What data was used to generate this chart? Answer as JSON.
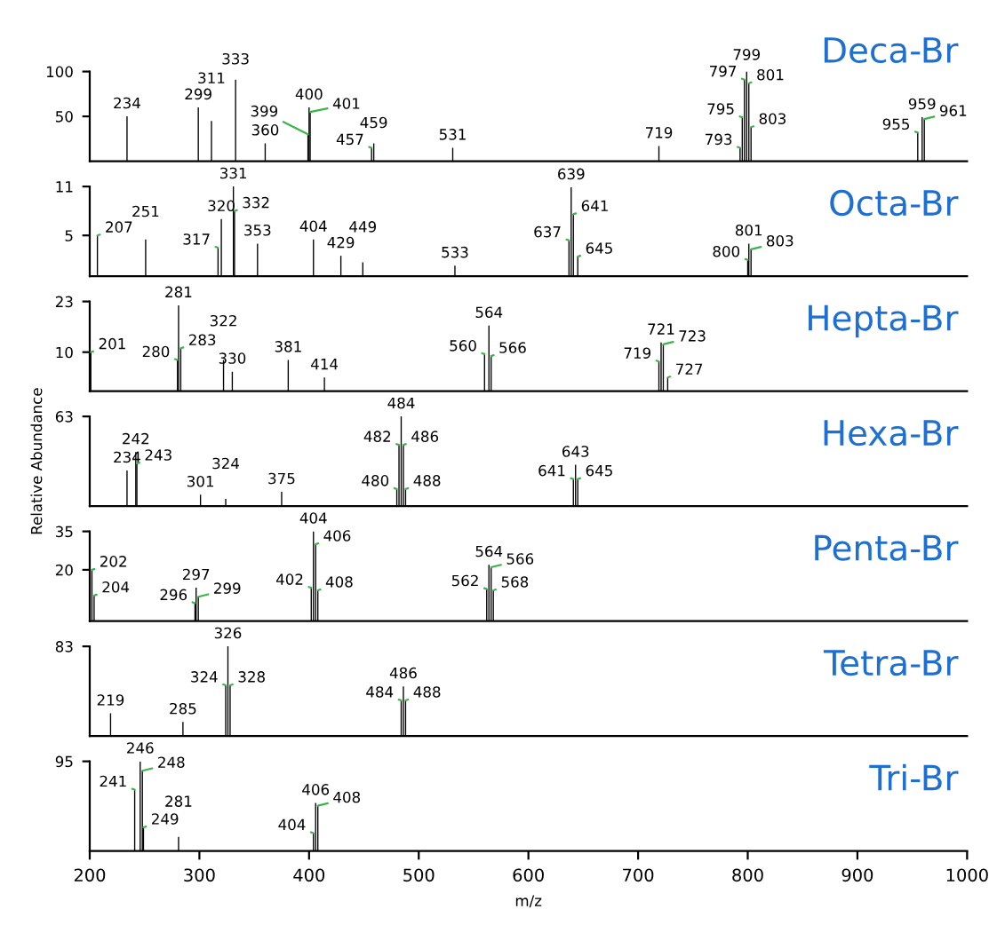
{
  "chart_data": [
    {
      "type": "bar",
      "title": "Deca-Br",
      "color": "#000000",
      "xlim": [
        200,
        1000
      ],
      "ylim": [
        0,
        100
      ],
      "yticks": [
        50,
        100
      ],
      "tick_labels": "y",
      "x": [
        234,
        299,
        311,
        333,
        360,
        399,
        400,
        401,
        457,
        459,
        531,
        719,
        793,
        795,
        797,
        799,
        801,
        803,
        955,
        959,
        961
      ],
      "values": [
        50,
        60,
        45,
        91,
        20,
        30,
        60,
        55,
        15,
        20,
        15,
        17,
        15,
        49,
        91,
        100,
        87,
        38,
        32,
        49,
        47
      ],
      "annotations": [
        {
          "text": "234",
          "x": 234,
          "y": 50
        },
        {
          "text": "299",
          "x": 299,
          "y": 60
        },
        {
          "text": "311",
          "x": 311,
          "y": 45
        },
        {
          "text": "333",
          "x": 333,
          "y": 91
        },
        {
          "text": "360",
          "x": 360,
          "y": 20
        },
        {
          "text": "399",
          "x": 399,
          "y": 30
        },
        {
          "text": "400",
          "x": 400,
          "y": 60
        },
        {
          "text": "401",
          "x": 401,
          "y": 55
        },
        {
          "text": "457",
          "x": 457,
          "y": 15
        },
        {
          "text": "459",
          "x": 459,
          "y": 20
        },
        {
          "text": "531",
          "x": 531,
          "y": 15
        },
        {
          "text": "719",
          "x": 719,
          "y": 17
        },
        {
          "text": "793",
          "x": 793,
          "y": 15
        },
        {
          "text": "795",
          "x": 795,
          "y": 49
        },
        {
          "text": "797",
          "x": 797,
          "y": 91
        },
        {
          "text": "799",
          "x": 799,
          "y": 100
        },
        {
          "text": "801",
          "x": 801,
          "y": 87
        },
        {
          "text": "803",
          "x": 803,
          "y": 38
        },
        {
          "text": "955",
          "x": 955,
          "y": 32
        },
        {
          "text": "959",
          "x": 959,
          "y": 49
        },
        {
          "text": "961",
          "x": 961,
          "y": 47
        }
      ]
    },
    {
      "type": "bar",
      "title": "Octa-Br",
      "color": "#000000",
      "xlim": [
        200,
        1000
      ],
      "ylim": [
        0,
        11
      ],
      "yticks": [
        5,
        11
      ],
      "tick_labels": "y",
      "x": [
        207,
        251,
        317,
        320,
        331,
        332,
        353,
        404,
        429,
        449,
        533,
        637,
        639,
        641,
        645,
        800,
        801,
        803
      ],
      "values": [
        5,
        4.5,
        3.5,
        7,
        11,
        8,
        4,
        4.5,
        2.5,
        1.7,
        1.3,
        4.4,
        10.9,
        7.6,
        2.4,
        2,
        4,
        3.3
      ],
      "annotations": [
        {
          "text": "207",
          "x": 207,
          "y": 5
        },
        {
          "text": "251",
          "x": 251,
          "y": 4.5
        },
        {
          "text": "317",
          "x": 317,
          "y": 3.5
        },
        {
          "text": "320",
          "x": 320,
          "y": 7
        },
        {
          "text": "331",
          "x": 331,
          "y": 11
        },
        {
          "text": "332",
          "x": 332,
          "y": 8
        },
        {
          "text": "353",
          "x": 353,
          "y": 4
        },
        {
          "text": "404",
          "x": 404,
          "y": 4.5
        },
        {
          "text": "429",
          "x": 429,
          "y": 2.5
        },
        {
          "text": "449",
          "x": 449,
          "y": 1.7
        },
        {
          "text": "533",
          "x": 533,
          "y": 1.3
        },
        {
          "text": "637",
          "x": 637,
          "y": 4.4
        },
        {
          "text": "639",
          "x": 639,
          "y": 10.9
        },
        {
          "text": "641",
          "x": 641,
          "y": 7.6
        },
        {
          "text": "645",
          "x": 645,
          "y": 2.4
        },
        {
          "text": "800",
          "x": 800,
          "y": 2
        },
        {
          "text": "801",
          "x": 801,
          "y": 4
        },
        {
          "text": "803",
          "x": 803,
          "y": 3.3
        }
      ]
    },
    {
      "type": "bar",
      "title": "Hepta-Br",
      "color": "#000000",
      "xlim": [
        200,
        1000
      ],
      "ylim": [
        0,
        23
      ],
      "yticks": [
        10,
        23
      ],
      "tick_labels": "y",
      "x": [
        201,
        280,
        281,
        283,
        322,
        330,
        381,
        414,
        560,
        564,
        566,
        719,
        721,
        723,
        727
      ],
      "values": [
        10,
        8,
        22,
        11,
        8,
        5,
        8,
        3.5,
        9.5,
        16.8,
        9,
        7.6,
        12.5,
        12,
        3.5
      ],
      "annotations": [
        {
          "text": "201",
          "x": 201,
          "y": 10
        },
        {
          "text": "280",
          "x": 280,
          "y": 8
        },
        {
          "text": "281",
          "x": 281,
          "y": 22
        },
        {
          "text": "283",
          "x": 283,
          "y": 11
        },
        {
          "text": "322",
          "x": 322,
          "y": 8
        },
        {
          "text": "330",
          "x": 330,
          "y": 5
        },
        {
          "text": "381",
          "x": 381,
          "y": 8
        },
        {
          "text": "414",
          "x": 414,
          "y": 3.5
        },
        {
          "text": "560",
          "x": 560,
          "y": 9.5
        },
        {
          "text": "564",
          "x": 564,
          "y": 16.8
        },
        {
          "text": "566",
          "x": 566,
          "y": 9
        },
        {
          "text": "719",
          "x": 719,
          "y": 7.6
        },
        {
          "text": "721",
          "x": 721,
          "y": 12.5
        },
        {
          "text": "723",
          "x": 723,
          "y": 12
        },
        {
          "text": "727",
          "x": 727,
          "y": 3.5
        }
      ]
    },
    {
      "type": "bar",
      "title": "Hexa-Br",
      "ylabel": "Relative Abundance",
      "color": "#000000",
      "xlim": [
        200,
        1000
      ],
      "ylim": [
        0,
        63
      ],
      "yticks": [
        63
      ],
      "tick_labels": "y",
      "x": [
        234,
        242,
        243,
        301,
        324,
        375,
        480,
        482,
        484,
        486,
        488,
        641,
        643,
        645
      ],
      "values": [
        25,
        38,
        30,
        8,
        5,
        10,
        12,
        43,
        63,
        43,
        12,
        19,
        29,
        19
      ],
      "annotations": [
        {
          "text": "234",
          "x": 234,
          "y": 25
        },
        {
          "text": "242",
          "x": 242,
          "y": 38
        },
        {
          "text": "243",
          "x": 243,
          "y": 30
        },
        {
          "text": "301",
          "x": 301,
          "y": 8
        },
        {
          "text": "324",
          "x": 324,
          "y": 5
        },
        {
          "text": "375",
          "x": 375,
          "y": 10
        },
        {
          "text": "480",
          "x": 480,
          "y": 12
        },
        {
          "text": "482",
          "x": 482,
          "y": 43
        },
        {
          "text": "484",
          "x": 484,
          "y": 63
        },
        {
          "text": "486",
          "x": 486,
          "y": 43
        },
        {
          "text": "488",
          "x": 488,
          "y": 12
        },
        {
          "text": "641",
          "x": 641,
          "y": 19
        },
        {
          "text": "643",
          "x": 643,
          "y": 29
        },
        {
          "text": "645",
          "x": 645,
          "y": 19
        }
      ]
    },
    {
      "type": "bar",
      "title": "Penta-Br",
      "color": "#000000",
      "xlim": [
        200,
        1000
      ],
      "ylim": [
        0,
        35
      ],
      "yticks": [
        20,
        35
      ],
      "tick_labels": "y",
      "x": [
        202,
        204,
        296,
        297,
        299,
        402,
        404,
        406,
        408,
        562,
        564,
        566,
        568
      ],
      "values": [
        20,
        10,
        7,
        13,
        9.5,
        13,
        35,
        30,
        12,
        12.5,
        22,
        21,
        12
      ],
      "annotations": [
        {
          "text": "202",
          "x": 202,
          "y": 20
        },
        {
          "text": "204",
          "x": 204,
          "y": 10
        },
        {
          "text": "296",
          "x": 296,
          "y": 7
        },
        {
          "text": "297",
          "x": 297,
          "y": 13
        },
        {
          "text": "299",
          "x": 299,
          "y": 9.5
        },
        {
          "text": "402",
          "x": 402,
          "y": 13
        },
        {
          "text": "404",
          "x": 404,
          "y": 35
        },
        {
          "text": "406",
          "x": 406,
          "y": 30
        },
        {
          "text": "408",
          "x": 408,
          "y": 12
        },
        {
          "text": "562",
          "x": 562,
          "y": 12.5
        },
        {
          "text": "564",
          "x": 564,
          "y": 22
        },
        {
          "text": "566",
          "x": 566,
          "y": 21
        },
        {
          "text": "568",
          "x": 568,
          "y": 12
        }
      ]
    },
    {
      "type": "bar",
      "title": "Tetra-Br",
      "color": "#000000",
      "xlim": [
        200,
        1000
      ],
      "ylim": [
        0,
        83
      ],
      "yticks": [
        83
      ],
      "tick_labels": "y",
      "x": [
        219,
        285,
        324,
        326,
        328,
        484,
        486,
        488
      ],
      "values": [
        21,
        13,
        47,
        83,
        47,
        33,
        46,
        33
      ],
      "annotations": [
        {
          "text": "219",
          "x": 219,
          "y": 21
        },
        {
          "text": "285",
          "x": 285,
          "y": 13
        },
        {
          "text": "324",
          "x": 324,
          "y": 47
        },
        {
          "text": "326",
          "x": 326,
          "y": 83
        },
        {
          "text": "328",
          "x": 328,
          "y": 47
        },
        {
          "text": "484",
          "x": 484,
          "y": 33
        },
        {
          "text": "486",
          "x": 486,
          "y": 46
        },
        {
          "text": "488",
          "x": 488,
          "y": 33
        }
      ]
    },
    {
      "type": "bar",
      "title": "Tri-Br",
      "xlabel": "m/z",
      "color": "#000000",
      "xlim": [
        200,
        1000
      ],
      "xticks": [
        200,
        300,
        400,
        500,
        600,
        700,
        800,
        900,
        1000
      ],
      "ylim": [
        0,
        95
      ],
      "yticks": [
        95
      ],
      "x": [
        241,
        246,
        248,
        249,
        281,
        404,
        406,
        408
      ],
      "values": [
        65,
        95,
        85,
        25,
        15,
        19,
        51,
        48
      ],
      "annotations": [
        {
          "text": "241",
          "x": 241,
          "y": 65
        },
        {
          "text": "246",
          "x": 246,
          "y": 95
        },
        {
          "text": "248",
          "x": 248,
          "y": 85
        },
        {
          "text": "249",
          "x": 249,
          "y": 25
        },
        {
          "text": "281",
          "x": 281,
          "y": 15
        },
        {
          "text": "404",
          "x": 404,
          "y": 19
        },
        {
          "text": "406",
          "x": 406,
          "y": 51
        },
        {
          "text": "408",
          "x": 408,
          "y": 48
        }
      ]
    }
  ]
}
